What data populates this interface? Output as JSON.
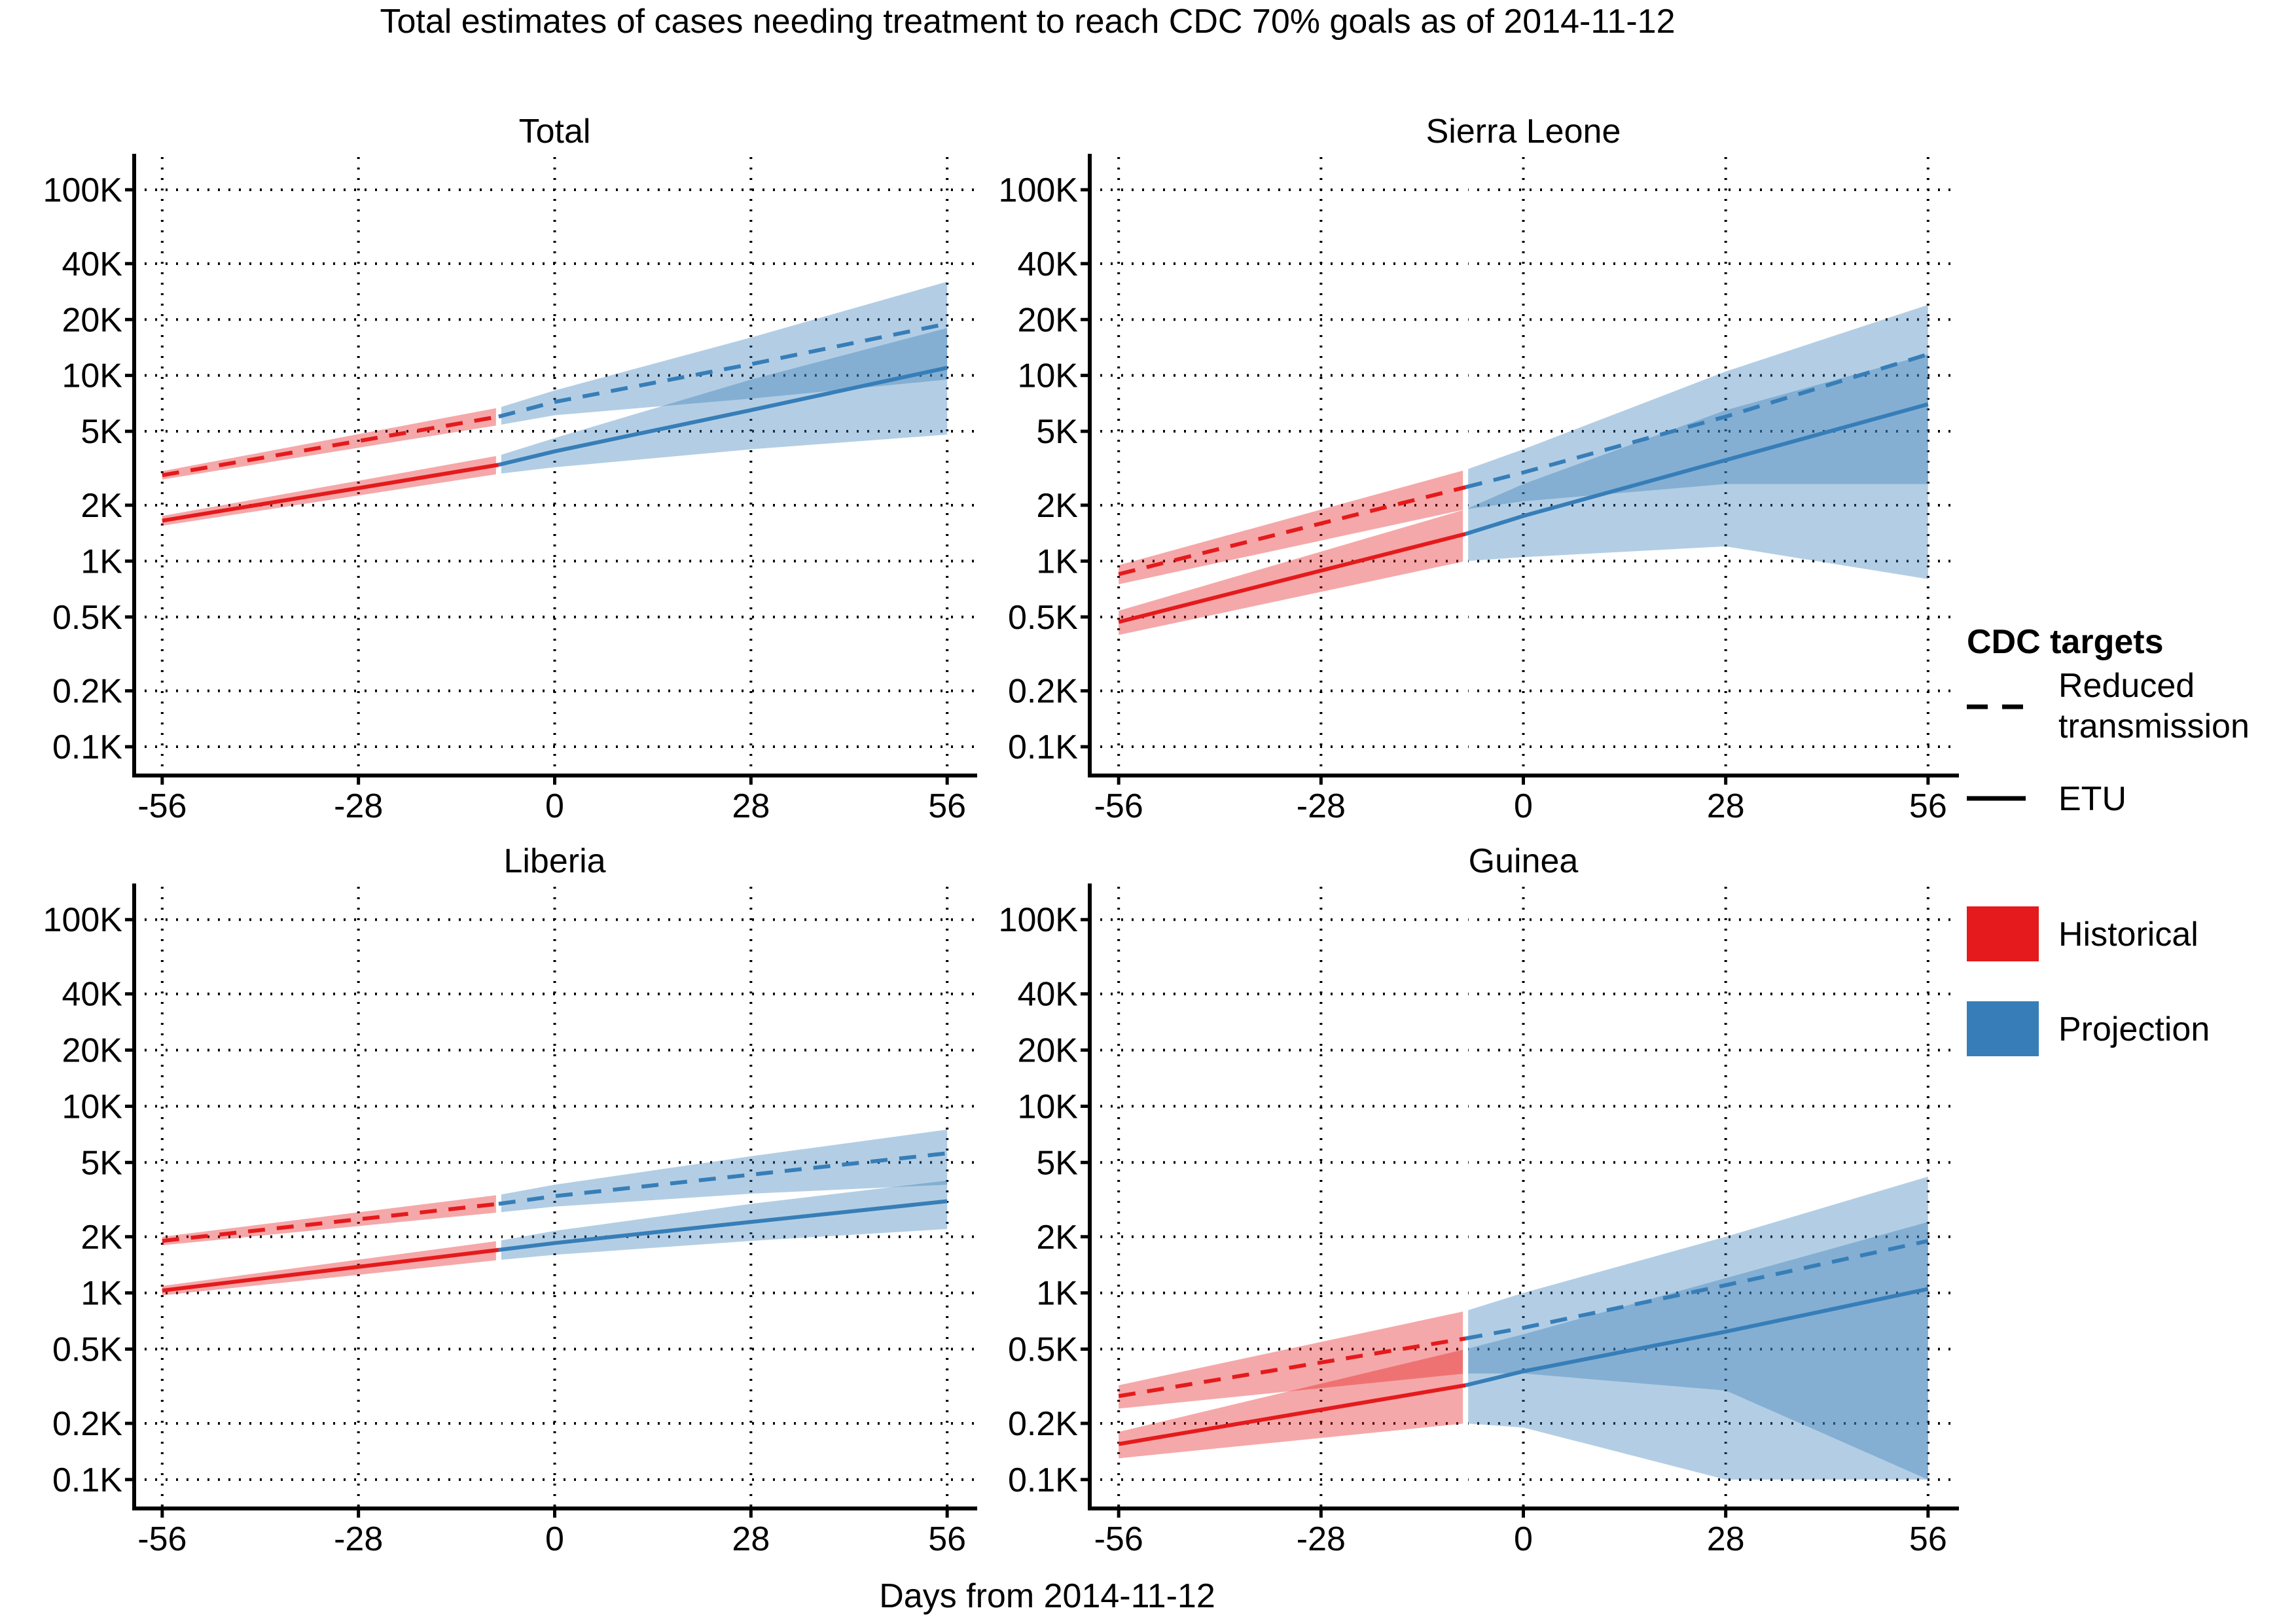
{
  "title": "Total estimates of cases needing treatment to reach CDC 70% goals as of 2014-11-12",
  "xlabel": "Days from 2014-11-12",
  "legend": {
    "line_title": "CDC targets",
    "reduced_label_1": "Reduced",
    "reduced_label_2": "transmission",
    "etu_label": "ETU",
    "historical_label": "Historical",
    "projection_label": "Projection"
  },
  "colors": {
    "historical": "#e41a1c",
    "projection": "#377eb8"
  },
  "chart_data": [
    {
      "type": "line",
      "title": "Total",
      "x_range": [
        -60,
        60
      ],
      "y_scale": "log",
      "y_range": [
        70,
        150000
      ],
      "x_ticks": [
        -56,
        -28,
        0,
        28,
        56
      ],
      "x_tick_labels": [
        "-56",
        "-28",
        "0",
        "28",
        "56"
      ],
      "y_ticks": [
        100,
        200,
        500,
        1000,
        2000,
        5000,
        10000,
        20000,
        40000,
        100000
      ],
      "y_tick_labels": [
        "0.1K",
        "0.2K",
        "0.5K",
        "1K",
        "2K",
        "5K",
        "10K",
        "20K",
        "40K",
        "100K"
      ],
      "grid": true,
      "series": [
        {
          "name": "Reduced transmission",
          "period": "Historical",
          "x": [
            -56,
            -8
          ],
          "y": [
            2900,
            6000
          ],
          "band_lower": [
            2750,
            5400
          ],
          "band_upper": [
            3050,
            6700
          ]
        },
        {
          "name": "ETU",
          "period": "Historical",
          "x": [
            -56,
            -8
          ],
          "y": [
            1650,
            3300
          ],
          "band_lower": [
            1550,
            2950
          ],
          "band_upper": [
            1750,
            3700
          ]
        },
        {
          "name": "Reduced transmission",
          "period": "Projection",
          "x": [
            -8,
            0,
            28,
            56
          ],
          "y": [
            6000,
            7200,
            11500,
            19000
          ],
          "band_lower": [
            5400,
            6100,
            7500,
            9500
          ],
          "band_upper": [
            6700,
            8300,
            16000,
            32000
          ]
        },
        {
          "name": "ETU",
          "period": "Projection",
          "x": [
            -8,
            0,
            28,
            56
          ],
          "y": [
            3300,
            3900,
            6500,
            11000
          ],
          "band_lower": [
            2950,
            3200,
            4000,
            4800
          ],
          "band_upper": [
            3700,
            4600,
            9500,
            18000
          ]
        }
      ]
    },
    {
      "type": "line",
      "title": "Sierra Leone",
      "x_range": [
        -60,
        60
      ],
      "y_scale": "log",
      "y_range": [
        70,
        150000
      ],
      "x_ticks": [
        -56,
        -28,
        0,
        28,
        56
      ],
      "x_tick_labels": [
        "-56",
        "-28",
        "0",
        "28",
        "56"
      ],
      "y_ticks": [
        100,
        200,
        500,
        1000,
        2000,
        5000,
        10000,
        20000,
        40000,
        100000
      ],
      "y_tick_labels": [
        "0.1K",
        "0.2K",
        "0.5K",
        "1K",
        "2K",
        "5K",
        "10K",
        "20K",
        "40K",
        "100K"
      ],
      "grid": true,
      "series": [
        {
          "name": "Reduced transmission",
          "period": "Historical",
          "x": [
            -56,
            -8
          ],
          "y": [
            850,
            2500
          ],
          "band_lower": [
            750,
            1900
          ],
          "band_upper": [
            950,
            3100
          ]
        },
        {
          "name": "ETU",
          "period": "Historical",
          "x": [
            -56,
            -8
          ],
          "y": [
            470,
            1400
          ],
          "band_lower": [
            400,
            1000
          ],
          "band_upper": [
            540,
            1900
          ]
        },
        {
          "name": "Reduced transmission",
          "period": "Projection",
          "x": [
            -8,
            0,
            28,
            56
          ],
          "y": [
            2500,
            3000,
            6000,
            13000
          ],
          "band_lower": [
            1900,
            2100,
            2600,
            2600
          ],
          "band_upper": [
            3100,
            4000,
            10500,
            24000
          ]
        },
        {
          "name": "ETU",
          "period": "Projection",
          "x": [
            -8,
            0,
            28,
            56
          ],
          "y": [
            1400,
            1750,
            3500,
            7000
          ],
          "band_lower": [
            1000,
            1050,
            1200,
            800
          ],
          "band_upper": [
            1900,
            2600,
            6500,
            13000
          ]
        }
      ]
    },
    {
      "type": "line",
      "title": "Liberia",
      "x_range": [
        -60,
        60
      ],
      "y_scale": "log",
      "y_range": [
        70,
        150000
      ],
      "x_ticks": [
        -56,
        -28,
        0,
        28,
        56
      ],
      "x_tick_labels": [
        "-56",
        "-28",
        "0",
        "28",
        "56"
      ],
      "y_ticks": [
        100,
        200,
        500,
        1000,
        2000,
        5000,
        10000,
        20000,
        40000,
        100000
      ],
      "y_tick_labels": [
        "0.1K",
        "0.2K",
        "0.5K",
        "1K",
        "2K",
        "5K",
        "10K",
        "20K",
        "40K",
        "100K"
      ],
      "grid": true,
      "series": [
        {
          "name": "Reduced transmission",
          "period": "Historical",
          "x": [
            -56,
            -8
          ],
          "y": [
            1900,
            3000
          ],
          "band_lower": [
            1800,
            2700
          ],
          "band_upper": [
            2000,
            3350
          ]
        },
        {
          "name": "ETU",
          "period": "Historical",
          "x": [
            -56,
            -8
          ],
          "y": [
            1030,
            1700
          ],
          "band_lower": [
            970,
            1500
          ],
          "band_upper": [
            1090,
            1900
          ]
        },
        {
          "name": "Reduced transmission",
          "period": "Projection",
          "x": [
            -8,
            0,
            28,
            56
          ],
          "y": [
            3000,
            3300,
            4300,
            5600
          ],
          "band_lower": [
            2700,
            2900,
            3400,
            3800
          ],
          "band_upper": [
            3350,
            3800,
            5400,
            7500
          ]
        },
        {
          "name": "ETU",
          "period": "Projection",
          "x": [
            -8,
            0,
            28,
            56
          ],
          "y": [
            1700,
            1850,
            2400,
            3100
          ],
          "band_lower": [
            1500,
            1600,
            1900,
            2200
          ],
          "band_upper": [
            1900,
            2150,
            3000,
            4000
          ]
        }
      ]
    },
    {
      "type": "line",
      "title": "Guinea",
      "x_range": [
        -60,
        60
      ],
      "y_scale": "log",
      "y_range": [
        70,
        150000
      ],
      "x_ticks": [
        -56,
        -28,
        0,
        28,
        56
      ],
      "x_tick_labels": [
        "-56",
        "-28",
        "0",
        "28",
        "56"
      ],
      "y_ticks": [
        100,
        200,
        500,
        1000,
        2000,
        5000,
        10000,
        20000,
        40000,
        100000
      ],
      "y_tick_labels": [
        "0.1K",
        "0.2K",
        "0.5K",
        "1K",
        "2K",
        "5K",
        "10K",
        "20K",
        "40K",
        "100K"
      ],
      "grid": true,
      "series": [
        {
          "name": "Reduced transmission",
          "period": "Historical",
          "x": [
            -56,
            -8
          ],
          "y": [
            280,
            570
          ],
          "band_lower": [
            240,
            370
          ],
          "band_upper": [
            320,
            800
          ]
        },
        {
          "name": "ETU",
          "period": "Historical",
          "x": [
            -56,
            -8
          ],
          "y": [
            155,
            320
          ],
          "band_lower": [
            130,
            200
          ],
          "band_upper": [
            180,
            500
          ]
        },
        {
          "name": "Reduced transmission",
          "period": "Projection",
          "x": [
            -8,
            0,
            28,
            56
          ],
          "y": [
            570,
            650,
            1100,
            1900
          ],
          "band_lower": [
            370,
            370,
            300,
            100
          ],
          "band_upper": [
            800,
            1000,
            2000,
            4200
          ]
        },
        {
          "name": "ETU",
          "period": "Projection",
          "x": [
            -8,
            0,
            28,
            56
          ],
          "y": [
            320,
            380,
            620,
            1050
          ],
          "band_lower": [
            200,
            190,
            100,
            100
          ],
          "band_upper": [
            500,
            600,
            1200,
            2400
          ]
        }
      ]
    }
  ]
}
